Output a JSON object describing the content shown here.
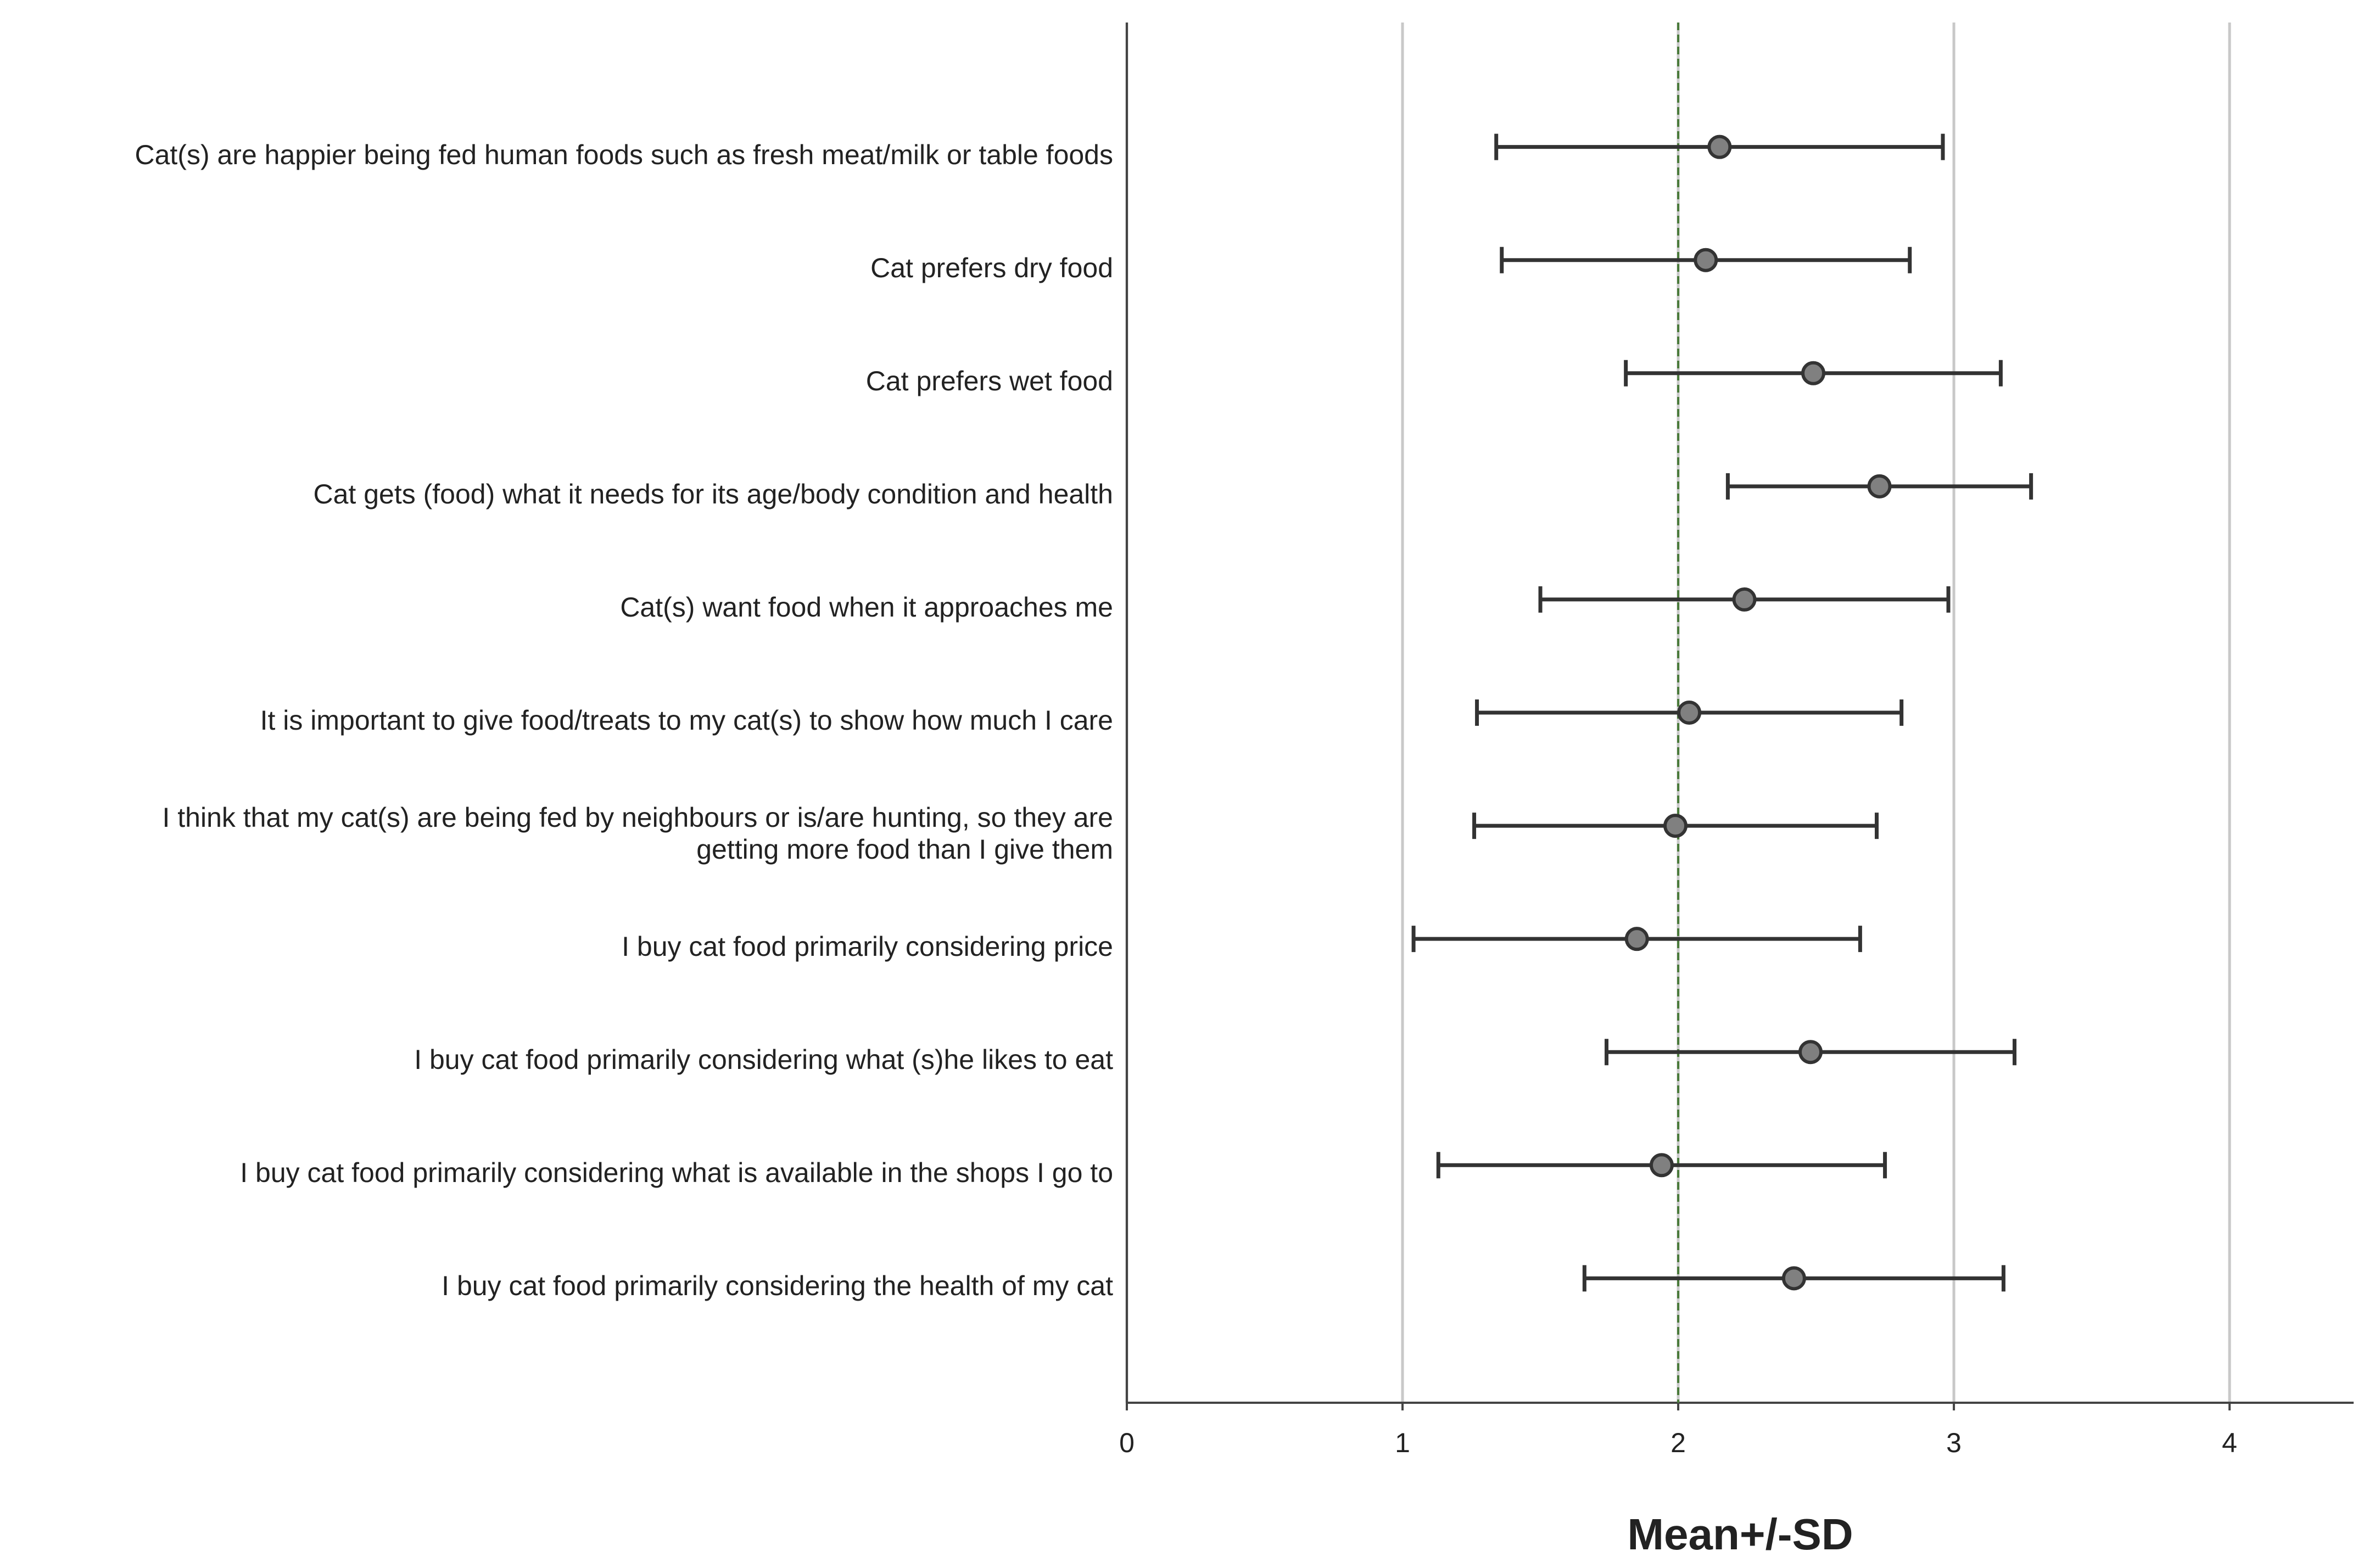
{
  "chart_data": {
    "type": "errorbar",
    "xlabel": "Mean+/-SD",
    "categories": [
      "Cat(s) are happier being fed human foods such as fresh meat/milk or table foods",
      "Cat prefers dry food",
      "Cat prefers wet food",
      "Cat gets (food)  what it needs for its age/body condition and health",
      "Cat(s) want food when it approaches me",
      "It is important to give food/treats to my cat(s) to show how much I care",
      "I think that my cat(s) are being fed by neighbours or is/are hunting, so they are\ngetting more food than I give them",
      "I buy cat food primarily considering price",
      "I buy cat food primarily considering what (s)he likes to eat",
      "I buy cat food primarily considering what is available in the shops I go to",
      "I buy cat food primarily considering the health of my cat"
    ],
    "values": [
      2.15,
      2.1,
      2.49,
      2.73,
      2.24,
      2.04,
      1.99,
      1.85,
      2.48,
      1.94,
      2.42
    ],
    "errors": [
      0.81,
      0.74,
      0.68,
      0.55,
      0.74,
      0.77,
      0.73,
      0.81,
      0.74,
      0.81,
      0.76
    ],
    "color": "#808080",
    "reference_line": 2,
    "reference_color": "#4a7a3a",
    "xlim": [
      0,
      4.45
    ],
    "xticks": [
      0,
      1,
      2,
      3,
      4
    ],
    "grid": true
  }
}
